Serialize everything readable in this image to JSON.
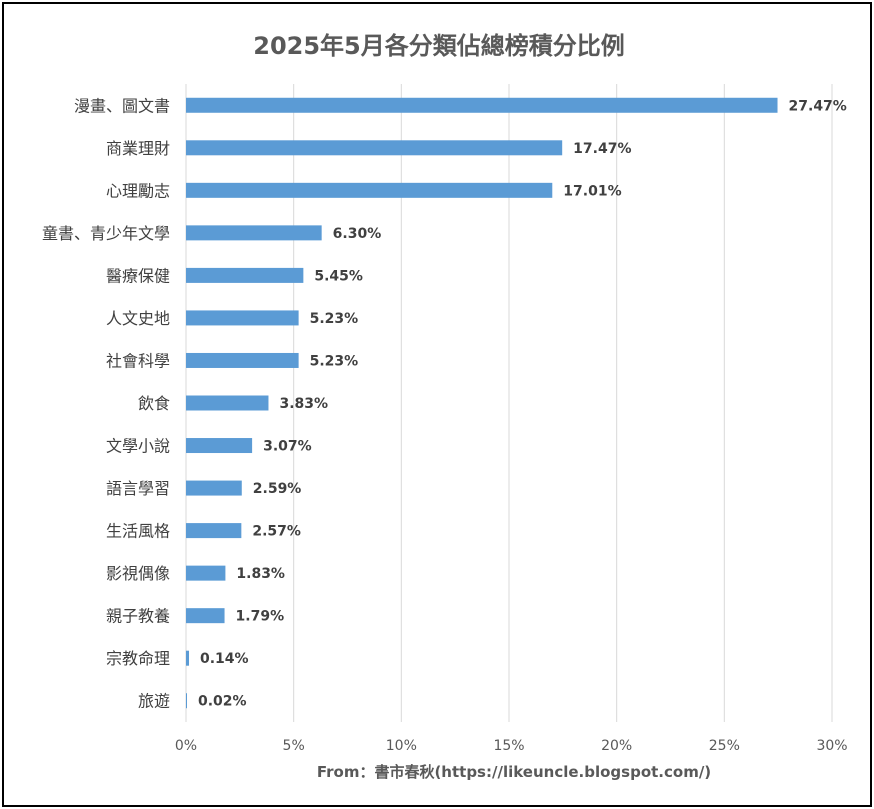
{
  "chart_data": {
    "type": "bar",
    "orientation": "horizontal",
    "title": "2025年5月各分類佔總榜積分比例",
    "categories": [
      "漫畫、圖文書",
      "商業理財",
      "心理勵志",
      "童書、青少年文學",
      "醫療保健",
      "人文史地",
      "社會科學",
      "飲食",
      "文學小說",
      "語言學習",
      "生活風格",
      "影視偶像",
      "親子教養",
      "宗教命理",
      "旅遊"
    ],
    "values": [
      27.47,
      17.47,
      17.01,
      6.3,
      5.45,
      5.23,
      5.23,
      3.83,
      3.07,
      2.59,
      2.57,
      1.83,
      1.79,
      0.14,
      0.02
    ],
    "data_labels": [
      "27.47%",
      "17.47%",
      "17.01%",
      "6.30%",
      "5.45%",
      "5.23%",
      "5.23%",
      "3.83%",
      "3.07%",
      "2.59%",
      "2.57%",
      "1.83%",
      "1.79%",
      "0.14%",
      "0.02%"
    ],
    "xlim": [
      0,
      30
    ],
    "xticks": [
      0,
      5,
      10,
      15,
      20,
      25,
      30
    ],
    "xtick_labels": [
      "0%",
      "5%",
      "10%",
      "15%",
      "20%",
      "25%",
      "30%"
    ],
    "grid": true,
    "bar_color": "#5b9bd5",
    "xlabel": "",
    "ylabel": ""
  },
  "footer": "From：書市春秋(https://likeuncle.blogspot.com/)"
}
